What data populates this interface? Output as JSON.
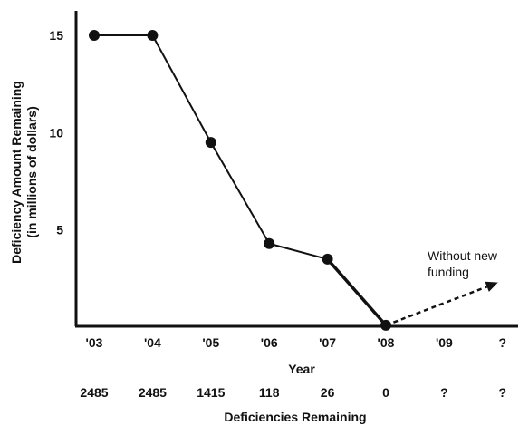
{
  "chart_data": {
    "type": "line",
    "title": "",
    "xlabel": "Year",
    "ylabel": "Deficiency Amount Remaining",
    "ylabel_sub": "(in millions of dollars)",
    "ylim": [
      0,
      16
    ],
    "yticks": [
      5,
      10,
      15
    ],
    "x_categories": [
      "'03",
      "'04",
      "'05",
      "'06",
      "'07",
      "'08",
      "'09",
      "?"
    ],
    "secondary_label": "Deficiencies Remaining",
    "secondary_values": [
      "2485",
      "2485",
      "1415",
      "118",
      "26",
      "0",
      "?",
      "?"
    ],
    "series": [
      {
        "values": [
          15,
          15,
          9.5,
          4.3,
          3.5,
          0.1
        ],
        "style": "solid"
      }
    ],
    "projection": {
      "style": "dashed-arrow",
      "from": {
        "category": "'08",
        "value": 0.1
      },
      "to": {
        "category": "?",
        "value": 2.3
      },
      "annotation": [
        "Without new",
        "funding"
      ]
    },
    "grid": false,
    "legend": "none",
    "colors": {
      "line": "#111111",
      "text": "#111111",
      "background": "#ffffff"
    }
  }
}
